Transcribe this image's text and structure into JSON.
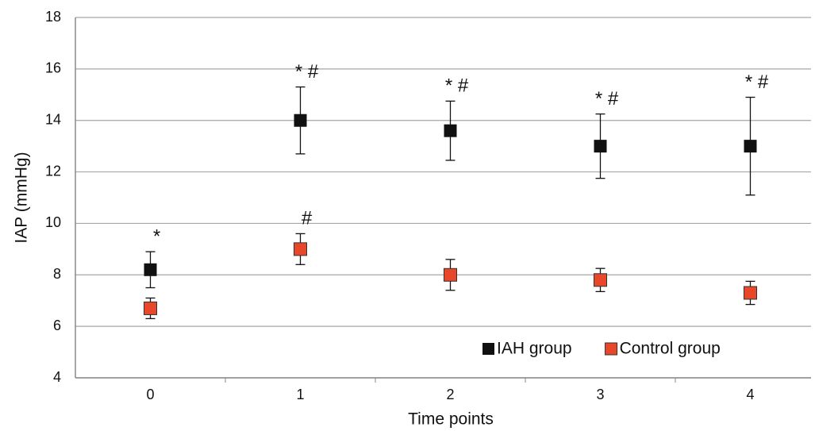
{
  "chart_data": {
    "type": "errorbar",
    "x_label": "Time points",
    "y_label": "IAP (mmHg)",
    "categories": [
      "0",
      "1",
      "2",
      "3",
      "4"
    ],
    "series": [
      {
        "name": "IAH group",
        "color": "#111111",
        "values": [
          8.2,
          14.0,
          13.6,
          13.0,
          13.0
        ],
        "errors": [
          0.7,
          1.3,
          1.15,
          1.25,
          1.9
        ],
        "annotations": [
          "*",
          "* #",
          "* #",
          "* #",
          "* #"
        ]
      },
      {
        "name": "Control group",
        "color": "#e8472a",
        "values": [
          6.7,
          9.0,
          8.0,
          7.8,
          7.3
        ],
        "errors": [
          0.4,
          0.6,
          0.6,
          0.45,
          0.45
        ],
        "annotations": [
          null,
          "#",
          null,
          null,
          null
        ]
      }
    ],
    "ylim": [
      4,
      18
    ],
    "yticks": [
      4,
      6,
      8,
      10,
      12,
      14,
      16,
      18
    ],
    "grid": true,
    "legend": "lower right"
  }
}
